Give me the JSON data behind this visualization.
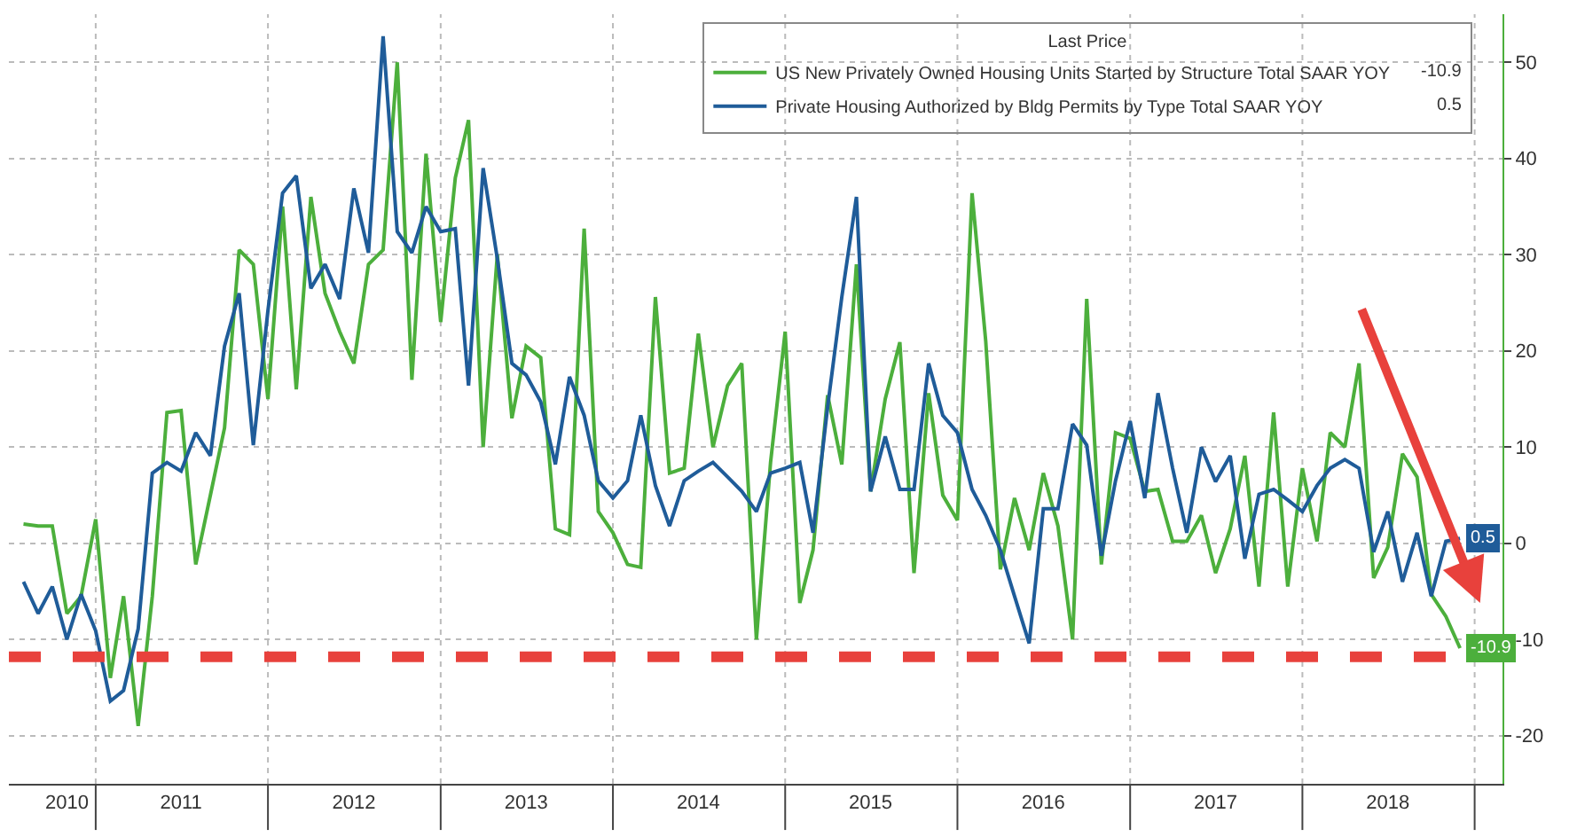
{
  "chart_data": {
    "type": "line",
    "x": [
      "2010-08",
      "2010-09",
      "2010-10",
      "2010-11",
      "2010-12",
      "2011-01",
      "2011-02",
      "2011-03",
      "2011-04",
      "2011-05",
      "2011-06",
      "2011-07",
      "2011-08",
      "2011-09",
      "2011-10",
      "2011-11",
      "2011-12",
      "2012-01",
      "2012-02",
      "2012-03",
      "2012-04",
      "2012-05",
      "2012-06",
      "2012-07",
      "2012-08",
      "2012-09",
      "2012-10",
      "2012-11",
      "2012-12",
      "2013-01",
      "2013-02",
      "2013-03",
      "2013-04",
      "2013-05",
      "2013-06",
      "2013-07",
      "2013-08",
      "2013-09",
      "2013-10",
      "2013-11",
      "2013-12",
      "2014-01",
      "2014-02",
      "2014-03",
      "2014-04",
      "2014-05",
      "2014-06",
      "2014-07",
      "2014-08",
      "2014-09",
      "2014-10",
      "2014-11",
      "2014-12",
      "2015-01",
      "2015-02",
      "2015-03",
      "2015-04",
      "2015-05",
      "2015-06",
      "2015-07",
      "2015-08",
      "2015-09",
      "2015-10",
      "2015-11",
      "2015-12",
      "2016-01",
      "2016-02",
      "2016-03",
      "2016-04",
      "2016-05",
      "2016-06",
      "2016-07",
      "2016-08",
      "2016-09",
      "2016-10",
      "2016-11",
      "2016-12",
      "2017-01",
      "2017-02",
      "2017-03",
      "2017-04",
      "2017-05",
      "2017-06",
      "2017-07",
      "2017-08",
      "2017-09",
      "2017-10",
      "2017-11",
      "2017-12",
      "2018-01",
      "2018-02",
      "2018-03",
      "2018-04",
      "2018-05",
      "2018-06",
      "2018-07",
      "2018-08",
      "2018-09",
      "2018-10",
      "2018-11",
      "2018-12"
    ],
    "series": [
      {
        "name": "US New Privately Owned Housing Units Started by Structure Total SAAR YOY",
        "color": "#4caf3c",
        "values": [
          2.0,
          1.8,
          1.8,
          -7.3,
          -5.5,
          2.5,
          -14,
          -5.5,
          -19,
          -5.5,
          13.6,
          13.8,
          -2.2,
          5,
          12,
          30.5,
          29,
          15,
          35,
          16,
          36,
          26,
          22,
          18.7,
          29,
          30.5,
          50,
          17,
          40.5,
          23,
          38,
          44,
          10,
          30,
          13,
          20.5,
          19.3,
          1.5,
          0.9,
          32.7,
          3.3,
          1.1,
          -2.2,
          -2.5,
          25.6,
          7.3,
          7.8,
          21.8,
          10,
          16.4,
          18.7,
          -10,
          8.4,
          22,
          -6.2,
          -0.7,
          15.4,
          8.2,
          29,
          5.4,
          15,
          20.9,
          -3.1,
          15.6,
          5,
          2.4,
          36.4,
          21,
          -2.7,
          4.7,
          -0.7,
          7.3,
          1.8,
          -10,
          25.4,
          -2.2,
          11.5,
          10.9,
          5.4,
          5.6,
          0.2,
          0.2,
          2.9,
          -3.1,
          1.5,
          9.1,
          -4.5,
          13.6,
          -4.5,
          7.8,
          0.2,
          11.5,
          10,
          18.7,
          -3.6,
          -0.4,
          9.3,
          6.9,
          -5.3,
          -7.6,
          -10.9
        ],
        "value_labels": [
          null,
          null,
          null,
          null,
          null,
          null,
          null,
          null,
          null,
          null,
          null,
          null,
          null,
          null,
          null,
          null,
          null,
          null,
          null,
          null,
          null,
          null,
          null,
          null,
          null,
          null,
          null,
          null,
          null,
          null,
          null,
          null,
          null,
          null,
          null,
          null,
          null,
          null,
          null,
          null,
          null,
          null,
          null,
          null,
          null,
          null,
          null,
          null,
          null,
          null,
          null,
          null,
          null,
          null,
          null,
          null,
          null,
          null,
          null,
          null,
          null,
          null,
          null,
          null,
          null,
          null,
          null,
          null,
          null,
          null,
          null,
          null,
          null,
          null,
          null,
          null,
          null,
          null,
          null,
          null,
          null,
          null,
          null,
          null,
          null,
          null,
          null,
          null,
          null,
          null,
          null,
          null,
          null,
          null,
          null,
          null,
          null,
          null,
          null,
          null,
          "-10.9"
        ]
      },
      {
        "name": "Private Housing Authorized by Bldg Permits by Type Total SAAR YOY",
        "color": "#1f5c99",
        "values": [
          -4,
          -7.3,
          -4.5,
          -10,
          -5.3,
          -9.1,
          -16.4,
          -15.3,
          -8.9,
          7.3,
          8.4,
          7.5,
          11.5,
          9.1,
          20.5,
          26,
          10.2,
          24.2,
          36.4,
          38.2,
          26.5,
          29,
          25.4,
          36.9,
          30.2,
          52.7,
          32.4,
          30.2,
          35,
          32.4,
          32.7,
          16.4,
          39,
          29.6,
          18.7,
          17.5,
          14.7,
          8.2,
          17.3,
          13.3,
          6.5,
          4.7,
          6.5,
          13.3,
          6,
          1.8,
          6.5,
          7.5,
          8.4,
          6.9,
          5.4,
          3.3,
          7.3,
          7.8,
          8.4,
          1.1,
          14.2,
          25.6,
          36,
          5.4,
          11.1,
          5.6,
          5.6,
          18.7,
          13.3,
          11.5,
          5.6,
          2.9,
          -0.7,
          -5.5,
          -10.4,
          3.6,
          3.6,
          12.4,
          10.2,
          -1.3,
          6.5,
          12.7,
          4.7,
          15.6,
          7.8,
          1.1,
          10,
          6.4,
          9.1,
          -1.6,
          5.1,
          5.6,
          4.5,
          3.3,
          6,
          7.8,
          8.7,
          7.8,
          -0.9,
          3.3,
          -4,
          1.1,
          -5.5,
          0.2,
          0.5
        ],
        "value_labels": [
          null,
          null,
          null,
          null,
          null,
          null,
          null,
          null,
          null,
          null,
          null,
          null,
          null,
          null,
          null,
          null,
          null,
          null,
          null,
          null,
          null,
          null,
          null,
          null,
          null,
          null,
          null,
          null,
          null,
          null,
          null,
          null,
          null,
          null,
          null,
          null,
          null,
          null,
          null,
          null,
          null,
          null,
          null,
          null,
          null,
          null,
          null,
          null,
          null,
          null,
          null,
          null,
          null,
          null,
          null,
          null,
          null,
          null,
          null,
          null,
          null,
          null,
          null,
          null,
          null,
          null,
          null,
          null,
          null,
          null,
          null,
          null,
          null,
          null,
          null,
          null,
          null,
          null,
          null,
          null,
          null,
          null,
          null,
          null,
          null,
          null,
          null,
          null,
          null,
          null,
          null,
          null,
          null,
          null,
          null,
          null,
          null,
          null,
          null,
          null,
          "0.5"
        ]
      }
    ],
    "legend_title": "Last Price",
    "legend": "top right",
    "xlim": [
      "2010-07-01",
      "2019-03-01"
    ],
    "xticks": [
      {
        "value": "2010-11-01",
        "label": "2010"
      },
      {
        "value": "2011-07-01",
        "label": "2011"
      },
      {
        "value": "2012-07-01",
        "label": "2012"
      },
      {
        "value": "2013-07-01",
        "label": "2013"
      },
      {
        "value": "2014-07-01",
        "label": "2014"
      },
      {
        "value": "2015-07-01",
        "label": "2015"
      },
      {
        "value": "2016-07-01",
        "label": "2016"
      },
      {
        "value": "2017-07-01",
        "label": "2017"
      },
      {
        "value": "2018-07-01",
        "label": "2018"
      }
    ],
    "ylim": [
      -25,
      55
    ],
    "yticks": [
      -20,
      -10,
      0,
      10,
      20,
      30,
      40,
      50
    ],
    "grid": true,
    "ref_lines": [
      {
        "axis": "y",
        "value": -11.8,
        "color": "#e8413c",
        "line_style": "dashed"
      }
    ]
  }
}
